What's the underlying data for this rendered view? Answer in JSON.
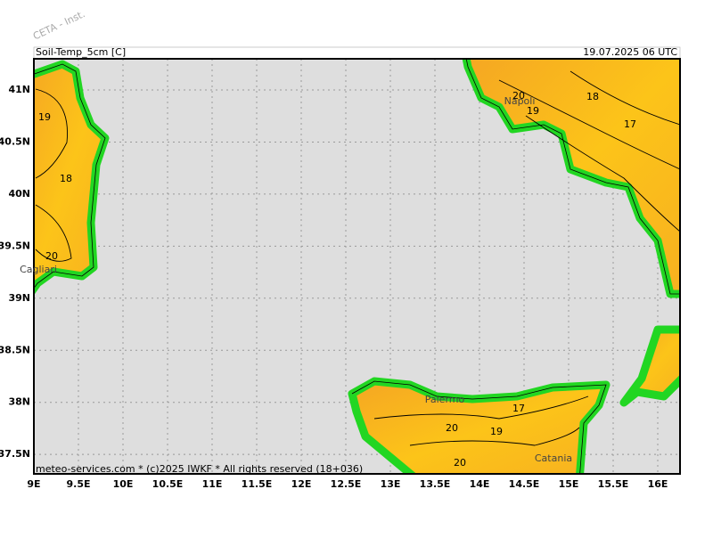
{
  "header": {
    "watermark": "CETA - Inst.",
    "variable": "Soil-Temp_5cm [C]",
    "valid_time": "19.07.2025 06 UTC"
  },
  "footer": "meteo-services.com * (c)2025 IWKF * All rights reserved (18+036)",
  "map": {
    "lon_ticks": [
      {
        "value": 9,
        "label": "9E"
      },
      {
        "value": 9.5,
        "label": "9.5E"
      },
      {
        "value": 10,
        "label": "10E"
      },
      {
        "value": 10.5,
        "label": "10.5E"
      },
      {
        "value": 11,
        "label": "11E"
      },
      {
        "value": 11.5,
        "label": "11.5E"
      },
      {
        "value": 12,
        "label": "12E"
      },
      {
        "value": 12.5,
        "label": "12.5E"
      },
      {
        "value": 13,
        "label": "13E"
      },
      {
        "value": 13.5,
        "label": "13.5E"
      },
      {
        "value": 14,
        "label": "14E"
      },
      {
        "value": 14.5,
        "label": "14.5E"
      },
      {
        "value": 15,
        "label": "15E"
      },
      {
        "value": 15.5,
        "label": "15.5E"
      },
      {
        "value": 16,
        "label": "16E"
      }
    ],
    "lat_ticks": [
      {
        "value": 37.5,
        "label": "37.5N"
      },
      {
        "value": 38,
        "label": "38N"
      },
      {
        "value": 38.5,
        "label": "38.5N"
      },
      {
        "value": 39,
        "label": "39N"
      },
      {
        "value": 39.5,
        "label": "39.5N"
      },
      {
        "value": 40,
        "label": "40N"
      },
      {
        "value": 40.5,
        "label": "40.5N"
      },
      {
        "value": 41,
        "label": "41N"
      }
    ],
    "contour_labels": [
      "19",
      "18",
      "20",
      "20",
      "19",
      "18",
      "17",
      "17",
      "20",
      "19",
      "20"
    ],
    "places": [
      "Cagliari",
      "Napoli",
      "Palermo",
      "Catania"
    ]
  }
}
